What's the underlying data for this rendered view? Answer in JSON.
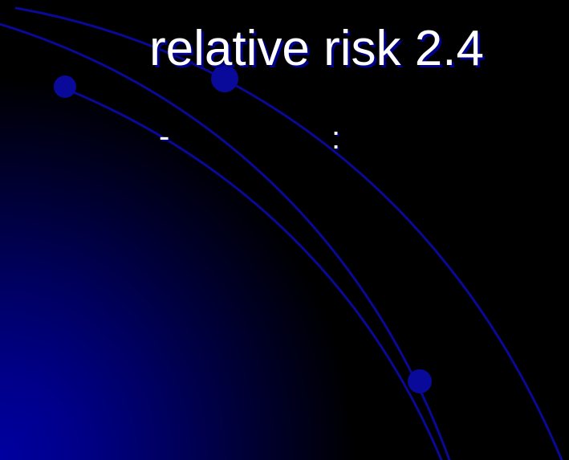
{
  "slide": {
    "title": "relative risk 2.4",
    "bullet_marker": "-",
    "bullet_separator": ":"
  },
  "theme": {
    "background": "#000000",
    "accent_blue": "#0000a0",
    "text_color": "#ffffff",
    "shadow_color": "#00008a"
  }
}
